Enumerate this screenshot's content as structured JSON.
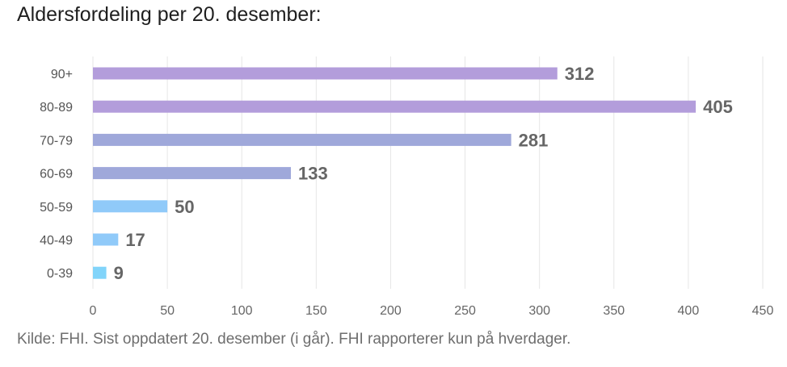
{
  "title": "Aldersfordeling per 20. desember:",
  "source": "Kilde: FHI. Sist oppdatert 20. desember (i går). FHI rapporterer kun på hverdager.",
  "chart_data": {
    "type": "bar",
    "orientation": "horizontal",
    "categories": [
      "90+",
      "80-89",
      "70-79",
      "60-69",
      "50-59",
      "40-49",
      "0-39"
    ],
    "values": [
      312,
      405,
      281,
      133,
      50,
      17,
      9
    ],
    "bar_colors": [
      "#b39ddb",
      "#b39ddb",
      "#9fa8da",
      "#9fa8da",
      "#90caf9",
      "#90caf9",
      "#81d4fa"
    ],
    "xlim": [
      0,
      450
    ],
    "xticks": [
      0,
      50,
      100,
      150,
      200,
      250,
      300,
      350,
      400,
      450
    ],
    "grid": true,
    "data_labels": true
  }
}
